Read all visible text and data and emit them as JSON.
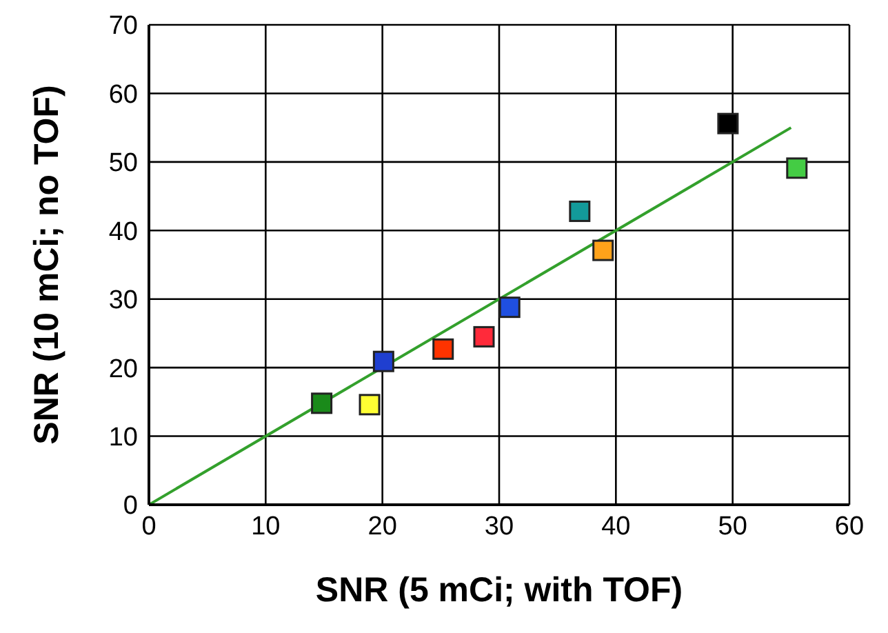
{
  "chart_data": {
    "type": "scatter",
    "xlabel": "SNR (5 mCi; with TOF)",
    "ylabel": "SNR (10 mCi; no TOF)",
    "xlim": [
      0,
      60
    ],
    "xticks": [
      0,
      10,
      20,
      30,
      40,
      50,
      60
    ],
    "ylim": [
      0,
      70
    ],
    "yticks": [
      0,
      10,
      20,
      30,
      40,
      50,
      60,
      70
    ],
    "grid": true,
    "legend": false,
    "marker": "square",
    "series": [
      {
        "x": [
          14.8,
          18.9,
          20.1,
          25.2,
          28.7,
          30.9,
          36.9,
          38.9,
          49.6,
          55.5
        ],
        "values": [
          14.8,
          14.6,
          20.9,
          22.7,
          24.5,
          28.8,
          42.8,
          37.1,
          55.6,
          49.1
        ],
        "colors": [
          "#1a8a1a",
          "#ffff33",
          "#1f3fd0",
          "#ff3300",
          "#ff2a3a",
          "#1f4fe0",
          "#139a9a",
          "#ffa21a",
          "#000000",
          "#44cc44"
        ]
      },
      {
        "type": "line",
        "x": [
          0,
          55
        ],
        "values": [
          0,
          55
        ],
        "color": "#33a02c",
        "line_style": "solid",
        "marker": "none"
      }
    ]
  }
}
